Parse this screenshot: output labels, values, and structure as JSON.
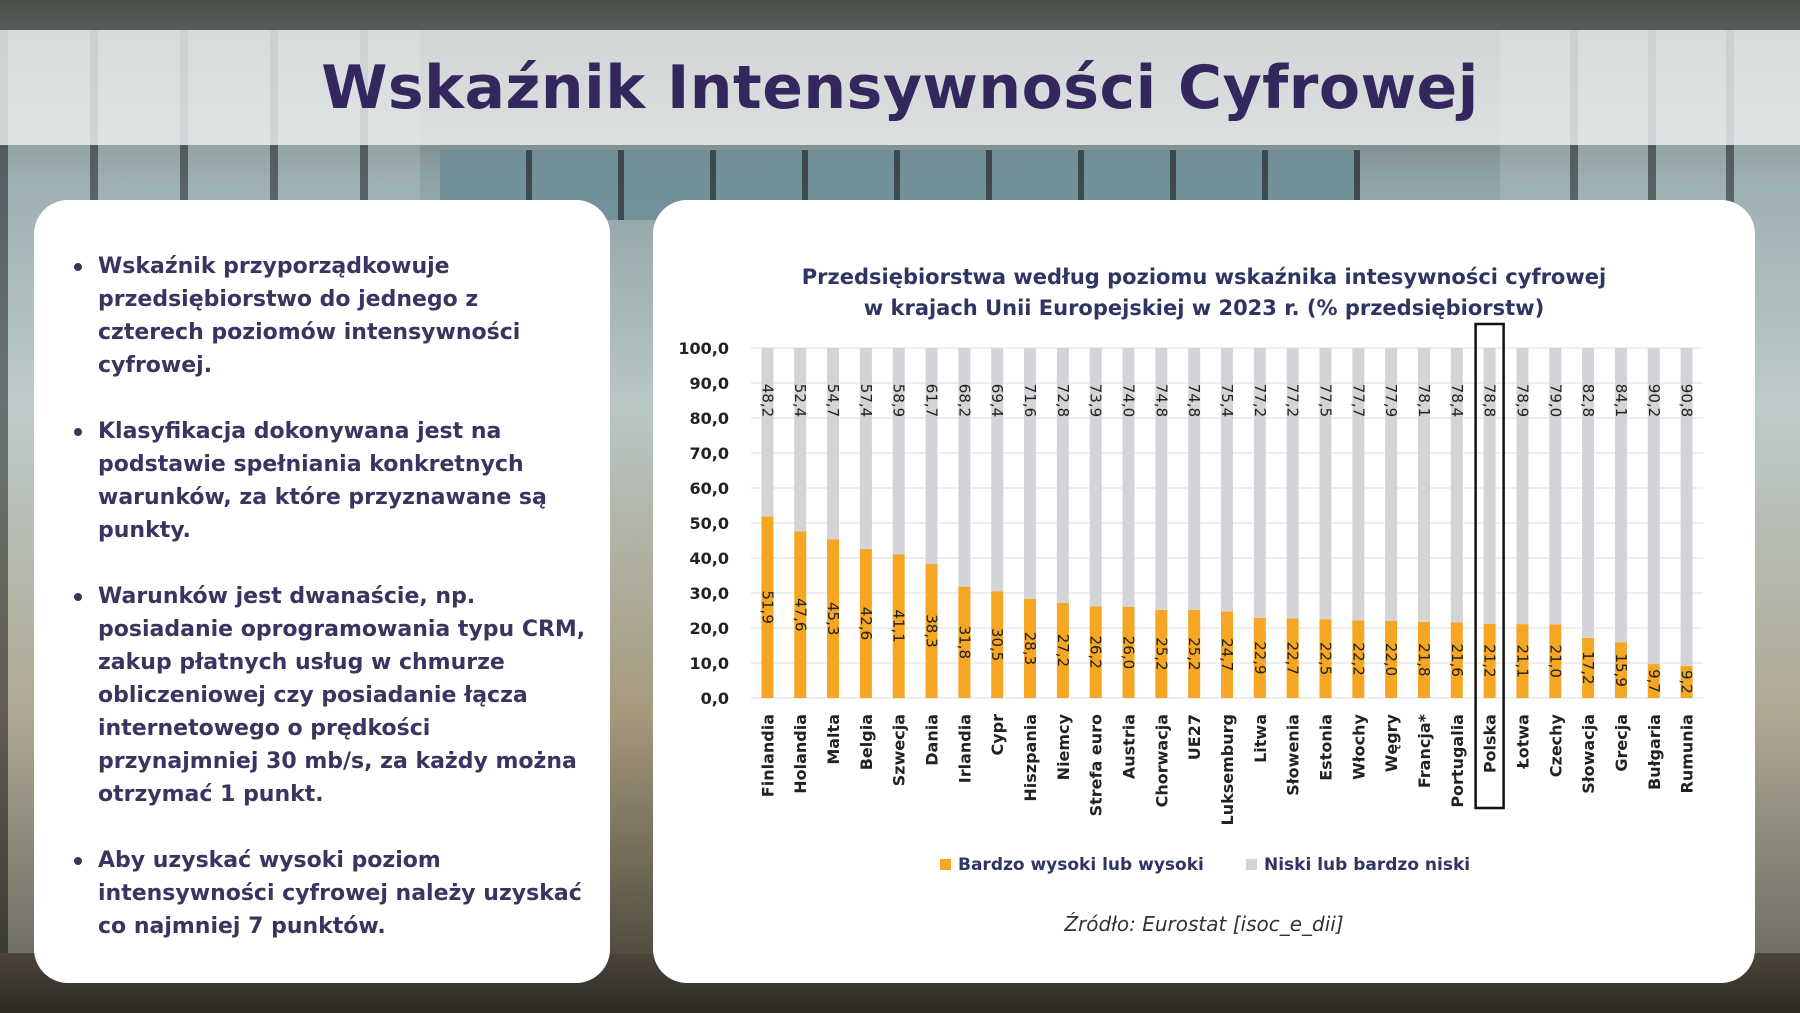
{
  "header": {
    "title": "Wskaźnik Intensywności Cyfrowej"
  },
  "bullets": [
    "Wskaźnik przyporządkowuje przedsiębiorstwo do jednego z czterech poziomów intensywności cyfrowej.",
    "Klasyfikacja dokonywana jest na podstawie spełniania konkretnych warunków, za które przyznawane są punkty.",
    "Warunków jest dwanaście, np. posiadanie oprogramowania typu CRM, zakup płatnych usług w chmurze obliczeniowej czy posiadanie łącza internetowego o prędkości przynajmniej 30 mb/s, za każdy można otrzymać 1 punkt.",
    "Aby uzyskać wysoki poziom intensywności cyfrowej należy uzyskać co najmniej 7 punktów."
  ],
  "source": "Źródło: Eurostat [isoc_e_dii]",
  "chart_data": {
    "type": "bar",
    "stacked": true,
    "title_lines": [
      "Przedsiębiorstwa według poziomu wskaźnika intesywności cyfrowej",
      "w krajach Unii Europejskiej w 2023 r. (% przedsiębiorstw)"
    ],
    "categories": [
      "Finlandia",
      "Holandia",
      "Malta",
      "Belgia",
      "Szwecja",
      "Dania",
      "Irlandia",
      "Cypr",
      "Hiszpania",
      "Niemcy",
      "Strefa euro",
      "Austria",
      "Chorwacja",
      "UE27",
      "Luksemburg",
      "Litwa",
      "Słowenia",
      "Estonia",
      "Włochy",
      "Węgry",
      "Francja*",
      "Portugalia",
      "Polska",
      "Łotwa",
      "Czechy",
      "Słowacja",
      "Grecja",
      "Bułgaria",
      "Rumunia"
    ],
    "series": [
      {
        "name": "Bardzo wysoki lub wysoki",
        "color": "#f5a623",
        "values": [
          51.9,
          47.6,
          45.3,
          42.6,
          41.1,
          38.3,
          31.8,
          30.5,
          28.3,
          27.2,
          26.2,
          26.0,
          25.2,
          25.2,
          24.7,
          22.9,
          22.7,
          22.5,
          22.2,
          22.0,
          21.8,
          21.6,
          21.2,
          21.1,
          21.0,
          17.2,
          15.9,
          9.7,
          9.2
        ],
        "labels": [
          "51,9",
          "47,6",
          "45,3",
          "42,6",
          "41,1",
          "38,3",
          "31,8",
          "30,5",
          "28,3",
          "27,2",
          "26,2",
          "26,0",
          "25,2",
          "25,2",
          "24,7",
          "22,9",
          "22,7",
          "22,5",
          "22,2",
          "22,0",
          "21,8",
          "21,6",
          "21,2",
          "21,1",
          "21,0",
          "17,2",
          "15,9",
          "9,7",
          "9,2"
        ]
      },
      {
        "name": "Niski lub bardzo niski",
        "color": "#d4d4d8",
        "values": [
          48.2,
          52.4,
          54.7,
          57.4,
          58.9,
          61.7,
          68.2,
          69.4,
          71.6,
          72.8,
          73.9,
          74.0,
          74.8,
          74.8,
          75.4,
          77.2,
          77.2,
          77.5,
          77.7,
          77.9,
          78.1,
          78.4,
          78.8,
          78.9,
          79.0,
          82.8,
          84.1,
          90.2,
          90.8
        ],
        "labels": [
          "48,2",
          "52,4",
          "54,7",
          "57,4",
          "58,9",
          "61,7",
          "68,2",
          "69,4",
          "71,6",
          "72,8",
          "73,9",
          "74,0",
          "74,8",
          "74,8",
          "75,4",
          "77,2",
          "77,2",
          "77,5",
          "77,7",
          "77,9",
          "78,1",
          "78,4",
          "78,8",
          "78,9",
          "79,0",
          "82,8",
          "84,1",
          "90,2",
          "90,8"
        ]
      }
    ],
    "y_ticks": [
      "0,0",
      "10,0",
      "20,0",
      "30,0",
      "40,0",
      "50,0",
      "60,0",
      "70,0",
      "80,0",
      "90,0",
      "100,0"
    ],
    "ylim": [
      0,
      100
    ],
    "highlight_category": "Polska",
    "legend_position": "bottom",
    "grid": true
  }
}
